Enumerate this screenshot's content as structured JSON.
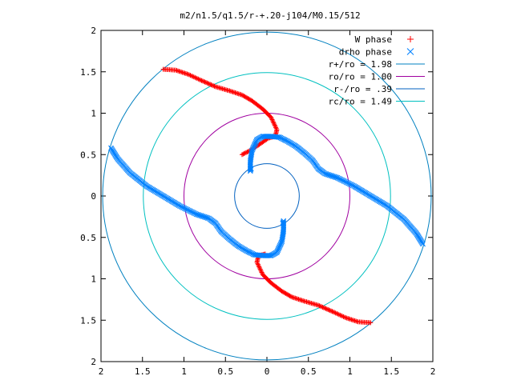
{
  "chart_data": {
    "type": "scatter",
    "title": "m2/n1.5/q1.5/r-+.20-j104/M0.15/512",
    "xlabel": "",
    "ylabel": "",
    "xlim": [
      -2,
      2
    ],
    "ylim": [
      -2,
      2
    ],
    "x_ticks": [
      "2",
      "1.5",
      "1",
      "0.5",
      "0",
      "0.5",
      "1",
      "1.5",
      "2"
    ],
    "y_ticks": [
      "2",
      "1.5",
      "1",
      "0.5",
      "0",
      "0.5",
      "1",
      "1.5",
      "2"
    ],
    "tick_values": [
      -2,
      -1.5,
      -1,
      -0.5,
      0,
      0.5,
      1,
      1.5,
      2
    ],
    "grid": false,
    "legend_position": "top-right",
    "series": [
      {
        "name": "W phase",
        "kind": "points",
        "marker": "plus",
        "color": "#ff0000",
        "x": [
          -1.25,
          -1.1,
          -0.95,
          -0.8,
          -0.62,
          -0.45,
          -0.3,
          -0.18,
          -0.05,
          0.05,
          0.12,
          0.1,
          0.02,
          -0.08,
          -0.2,
          -0.3
        ],
        "y": [
          1.53,
          1.52,
          1.47,
          1.4,
          1.32,
          1.27,
          1.22,
          1.15,
          1.05,
          0.95,
          0.8,
          0.72,
          0.7,
          0.63,
          0.55,
          0.5
        ],
        "x2": [
          1.25,
          1.1,
          0.95,
          0.8,
          0.62,
          0.45,
          0.3,
          0.18,
          0.05,
          -0.05,
          -0.12,
          -0.1,
          -0.02
        ],
        "y2": [
          -1.53,
          -1.52,
          -1.47,
          -1.4,
          -1.32,
          -1.27,
          -1.22,
          -1.15,
          -1.05,
          -0.95,
          -0.8,
          -0.72,
          -0.7
        ]
      },
      {
        "name": "drho phase",
        "kind": "points",
        "marker": "cross",
        "color": "#0080ff",
        "x": [
          -1.88,
          -1.8,
          -1.65,
          -1.45,
          -1.25,
          -1.05,
          -0.85,
          -0.7,
          -0.62,
          -0.55,
          -0.45,
          -0.35,
          -0.25,
          -0.15,
          -0.05,
          0.05,
          0.12,
          0.18,
          0.2,
          0.2,
          0.19
        ],
        "y": [
          0.58,
          0.45,
          0.28,
          0.12,
          0.0,
          -0.12,
          -0.22,
          -0.27,
          -0.33,
          -0.43,
          -0.52,
          -0.6,
          -0.66,
          -0.71,
          -0.72,
          -0.72,
          -0.68,
          -0.55,
          -0.42,
          -0.3,
          -0.33
        ],
        "x2": [
          1.88,
          1.8,
          1.65,
          1.45,
          1.25,
          1.05,
          0.85,
          0.7,
          0.62,
          0.55,
          0.45,
          0.35,
          0.25,
          0.15,
          0.05,
          -0.05,
          -0.12,
          -0.18,
          -0.2,
          -0.2,
          -0.19
        ],
        "y2": [
          -0.58,
          -0.45,
          -0.28,
          -0.12,
          0.0,
          0.12,
          0.22,
          0.27,
          0.33,
          0.43,
          0.52,
          0.6,
          0.66,
          0.71,
          0.72,
          0.72,
          0.68,
          0.55,
          0.42,
          0.3,
          0.33
        ]
      },
      {
        "name": "r+/ro = 1.98",
        "kind": "circle",
        "radius": 1.98,
        "color": "#0080c0"
      },
      {
        "name": "ro/ro = 1.00",
        "kind": "circle",
        "radius": 1.0,
        "color": "#a000a0"
      },
      {
        "name": "r-/ro = .39",
        "kind": "circle",
        "radius": 0.39,
        "color": "#0060c0"
      },
      {
        "name": "rc/ro = 1.49",
        "kind": "circle",
        "radius": 1.49,
        "color": "#00c0c0"
      }
    ]
  }
}
